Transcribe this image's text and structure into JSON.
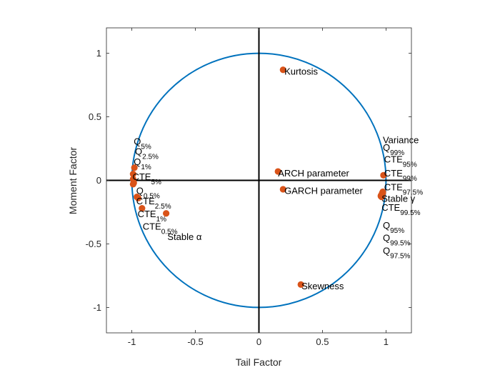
{
  "chart_data": {
    "type": "scatter",
    "title": "",
    "xlabel": "Tail Factor",
    "ylabel": "Moment Factor",
    "xlim": [
      -1.2,
      1.2
    ],
    "ylim": [
      -1.2,
      1.2
    ],
    "xticks": [
      -1,
      -0.5,
      0,
      0.5,
      1
    ],
    "yticks": [
      -1,
      -0.5,
      0,
      0.5,
      1
    ],
    "xtick_labels": [
      "-1",
      "-0.5",
      "0",
      "0.5",
      "1"
    ],
    "ytick_labels": [
      "-1",
      "-0.5",
      "0",
      "0.5",
      "1"
    ],
    "grid": false,
    "unit_circle": true,
    "axes_lines_through_origin": true,
    "colors": {
      "circle": "#0072BD",
      "points": "#D95319",
      "axes": "#000000",
      "box": "#262626"
    },
    "points": [
      {
        "x": 0.19,
        "y": 0.87,
        "label": "Kurtosis",
        "sub": ""
      },
      {
        "x": 0.15,
        "y": 0.07,
        "label": "ARCH parameter",
        "sub": ""
      },
      {
        "x": 0.19,
        "y": -0.07,
        "label": "GARCH parameter",
        "sub": ""
      },
      {
        "x": 0.33,
        "y": -0.82,
        "label": "Skewness",
        "sub": ""
      },
      {
        "x": -0.73,
        "y": -0.26,
        "label": "Stable α",
        "sub": ""
      },
      {
        "x": -0.92,
        "y": -0.22,
        "label": "CTE",
        "sub": "1%"
      },
      {
        "x": -0.96,
        "y": -0.13,
        "label": "CTE",
        "sub": "2.5%"
      },
      {
        "x": -0.95,
        "y": -0.14,
        "label": "CTE",
        "sub": "0.5%"
      },
      {
        "x": -0.99,
        "y": -0.03,
        "label": "Q",
        "sub": "0.5%"
      },
      {
        "x": -0.98,
        "y": 0.1,
        "label": "Q",
        "sub": "1%"
      },
      {
        "x": -0.99,
        "y": 0.05,
        "label": "CTE",
        "sub": "5%"
      },
      {
        "x": -0.99,
        "y": 0.01,
        "label": "Q",
        "sub": "2.5%"
      },
      {
        "x": -0.985,
        "y": -0.02,
        "label": "Q",
        "sub": "5%"
      },
      {
        "x": 0.98,
        "y": 0.04,
        "label": "Variance",
        "sub": ""
      },
      {
        "x": 0.97,
        "y": -0.1,
        "label": "CTE",
        "sub": "99%"
      },
      {
        "x": 0.975,
        "y": -0.09,
        "label": "CTE",
        "sub": "95%"
      },
      {
        "x": 0.96,
        "y": -0.12,
        "label": "CTE",
        "sub": "97.5%"
      },
      {
        "x": 0.965,
        "y": -0.13,
        "label": "CTE",
        "sub": "99.5%"
      },
      {
        "x": 0.97,
        "y": -0.11,
        "label": "Stable γ",
        "sub": ""
      },
      {
        "x": 0.975,
        "y": -0.1,
        "label": "Q",
        "sub": "99%"
      },
      {
        "x": 0.97,
        "y": -0.12,
        "label": "Q",
        "sub": "95%"
      },
      {
        "x": 0.965,
        "y": -0.115,
        "label": "Q",
        "sub": "99.5%"
      },
      {
        "x": 0.96,
        "y": -0.125,
        "label": "Q",
        "sub": "97.5%"
      }
    ],
    "annotations": [
      {
        "text": "Kurtosis",
        "sub": "",
        "x": 0.2,
        "y": 0.86
      },
      {
        "text": "ARCH parameter",
        "sub": "",
        "x": 0.15,
        "y": 0.06
      },
      {
        "text": "GARCH parameter",
        "sub": "",
        "x": 0.2,
        "y": -0.08
      },
      {
        "text": "Skewness",
        "sub": "",
        "x": 0.335,
        "y": -0.83
      },
      {
        "text": "Stable α",
        "sub": "",
        "x": -0.72,
        "y": -0.44
      },
      {
        "text": "Q",
        "sub": "5%",
        "x": -0.985,
        "y": 0.31
      },
      {
        "text": "Q",
        "sub": "2.5%",
        "x": -0.975,
        "y": 0.23
      },
      {
        "text": "Q",
        "sub": "1%",
        "x": -0.985,
        "y": 0.15
      },
      {
        "text": "CTE",
        "sub": "5%",
        "x": -0.995,
        "y": 0.03
      },
      {
        "text": "Q",
        "sub": "0.5%",
        "x": -0.965,
        "y": -0.08
      },
      {
        "text": "CTE",
        "sub": "2.5%",
        "x": -0.965,
        "y": -0.16
      },
      {
        "text": "CTE",
        "sub": "1%",
        "x": -0.955,
        "y": -0.26
      },
      {
        "text": "CTE",
        "sub": "0.5%",
        "x": -0.915,
        "y": -0.36
      },
      {
        "text": "Variance",
        "sub": "",
        "x": 0.975,
        "y": 0.32
      },
      {
        "text": "Q",
        "sub": "99%",
        "x": 0.975,
        "y": 0.26
      },
      {
        "text": "CTE",
        "sub": "95%",
        "x": 0.985,
        "y": 0.17
      },
      {
        "text": "CTE",
        "sub": "99%",
        "x": 0.985,
        "y": 0.06
      },
      {
        "text": "CTE",
        "sub": "97.5%",
        "x": 0.985,
        "y": -0.05
      },
      {
        "text": "Stable γ",
        "sub": "",
        "x": 0.965,
        "y": -0.14
      },
      {
        "text": "CTE",
        "sub": "99.5%",
        "x": 0.965,
        "y": -0.21
      },
      {
        "text": "Q",
        "sub": "95%",
        "x": 0.975,
        "y": -0.35
      },
      {
        "text": "Q",
        "sub": "99.5%",
        "x": 0.975,
        "y": -0.45
      },
      {
        "text": "Q",
        "sub": "97.5%",
        "x": 0.975,
        "y": -0.55
      }
    ]
  }
}
